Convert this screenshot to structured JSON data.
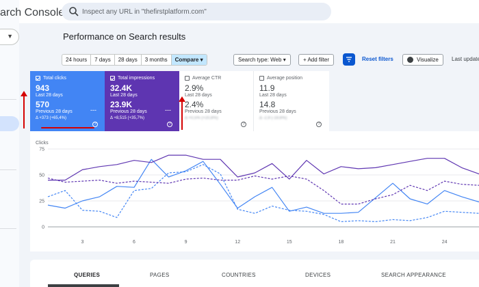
{
  "app": {
    "title": "arch Console"
  },
  "search": {
    "placeholder": "Inspect any URL in \"thefirstplatform.com\""
  },
  "page": {
    "title": "Performance on Search results"
  },
  "toolbar": {
    "date_ranges": [
      "24 hours",
      "7 days",
      "28 days",
      "3 months",
      "Compare"
    ],
    "search_type": "Search type: Web",
    "add_filter": "+ Add filter",
    "reset_filters": "Reset filters",
    "visualize": "Visualize",
    "last_updated": "Last update"
  },
  "metrics": {
    "clicks": {
      "label": "Total clicks",
      "current": "943",
      "current_period": "Last 28 days",
      "previous": "570",
      "previous_period": "Previous 28 days",
      "delta": "Δ +373 (+65,4%)",
      "color": "#4285f4"
    },
    "impressions": {
      "label": "Total impressions",
      "current": "32.4K",
      "current_period": "Last 28 days",
      "previous": "23.9K",
      "previous_period": "Previous 28 days",
      "delta": "Δ +8,515 (+35,7%)",
      "color": "#5e35b1"
    },
    "ctr": {
      "label": "Average CTR",
      "current": "2.9%",
      "current_period": "Last 28 days",
      "previous": "2.4%",
      "previous_period": "Previous 28 days",
      "delta": "Δ +0,5% (+20,8%)"
    },
    "position": {
      "label": "Average position",
      "current": "11.9",
      "current_period": "Last 28 days",
      "previous": "14.8",
      "previous_period": "Previous 28 days",
      "delta": "Δ -2,9 (-19,6%)"
    }
  },
  "chart_data": {
    "type": "line",
    "ylabel": "Clicks",
    "ylim": [
      0,
      75
    ],
    "yticks": [
      "0",
      "25",
      "50",
      "75"
    ],
    "xticks": [
      "3",
      "6",
      "9",
      "12",
      "15",
      "18",
      "21",
      "24"
    ],
    "x": [
      1,
      2,
      3,
      4,
      5,
      6,
      7,
      8,
      9,
      10,
      11,
      12,
      13,
      14,
      15,
      16,
      17,
      18,
      19,
      20,
      21,
      22,
      23,
      24,
      25,
      26
    ],
    "grid": true,
    "series": [
      {
        "name": "Total clicks",
        "style": "solid",
        "color": "#4285f4",
        "values": [
          21,
          18,
          25,
          29,
          39,
          38,
          65,
          48,
          54,
          63,
          41,
          18,
          29,
          38,
          15,
          19,
          13,
          13,
          14,
          28,
          42,
          27,
          22,
          35,
          29,
          24
        ]
      },
      {
        "name": "Total clicks (previous)",
        "style": "dashed",
        "color": "#4285f4",
        "values": [
          29,
          35,
          16,
          15,
          9,
          35,
          37,
          52,
          53,
          60,
          51,
          17,
          13,
          20,
          16,
          15,
          12,
          5,
          6,
          5,
          7,
          6,
          9,
          15,
          14,
          13
        ]
      },
      {
        "name": "Total impressions",
        "style": "solid",
        "color": "#5e35b1",
        "values": [
          45,
          45,
          55,
          58,
          60,
          64,
          62,
          69,
          69,
          65,
          65,
          48,
          52,
          61,
          46,
          64,
          51,
          58,
          56,
          57,
          60,
          63,
          66,
          66,
          57,
          51
        ]
      },
      {
        "name": "Total impressions (previous)",
        "style": "dashed",
        "color": "#5e35b1",
        "values": [
          47,
          43,
          44,
          45,
          42,
          44,
          43,
          42,
          46,
          47,
          45,
          45,
          49,
          46,
          49,
          46,
          35,
          22,
          22,
          27,
          31,
          40,
          35,
          44,
          41,
          40
        ]
      }
    ]
  },
  "tabs": [
    "QUERIES",
    "PAGES",
    "COUNTRIES",
    "DEVICES",
    "SEARCH APPEARANCE"
  ]
}
